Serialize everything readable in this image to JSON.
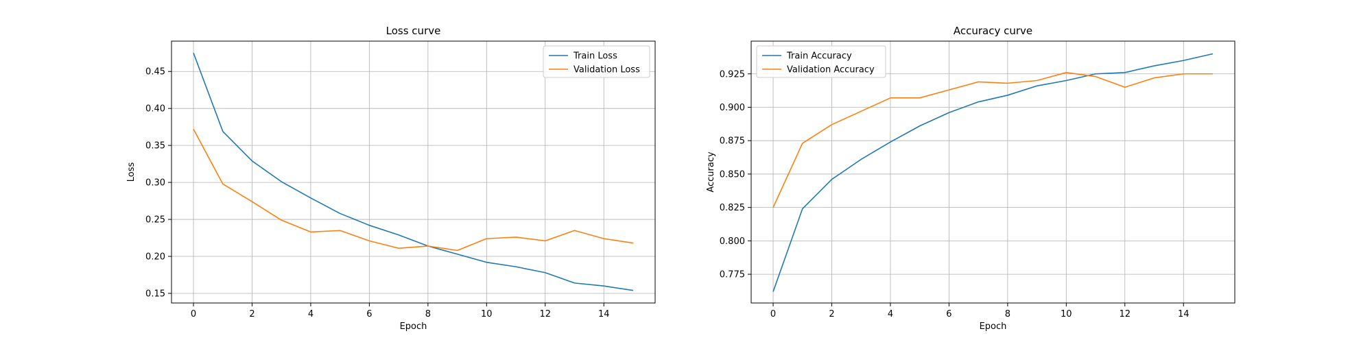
{
  "chart_data": [
    {
      "type": "line",
      "title": "Loss curve",
      "xlabel": "Epoch",
      "ylabel": "Loss",
      "xlim": [
        -0.75,
        15.75
      ],
      "ylim": [
        0.137,
        0.491
      ],
      "xticks": [
        0,
        2,
        4,
        6,
        8,
        10,
        12,
        14
      ],
      "yticks": [
        0.15,
        0.2,
        0.25,
        0.3,
        0.35,
        0.4,
        0.45
      ],
      "ytick_labels": [
        "0.15",
        "0.20",
        "0.25",
        "0.30",
        "0.35",
        "0.40",
        "0.45"
      ],
      "grid": true,
      "legend_position": "top-right",
      "x": [
        0,
        1,
        2,
        3,
        4,
        5,
        6,
        7,
        8,
        9,
        10,
        11,
        12,
        13,
        14,
        15
      ],
      "series": [
        {
          "name": "Train Loss",
          "color": "#1f77b4",
          "values": [
            0.475,
            0.369,
            0.329,
            0.301,
            0.279,
            0.258,
            0.242,
            0.229,
            0.214,
            0.203,
            0.192,
            0.186,
            0.178,
            0.164,
            0.16,
            0.154
          ]
        },
        {
          "name": "Validation Loss",
          "color": "#ff7f0e",
          "values": [
            0.372,
            0.298,
            0.274,
            0.249,
            0.233,
            0.235,
            0.221,
            0.211,
            0.214,
            0.208,
            0.224,
            0.226,
            0.221,
            0.235,
            0.224,
            0.218
          ]
        }
      ]
    },
    {
      "type": "line",
      "title": "Accuracy curve",
      "xlabel": "Epoch",
      "ylabel": "Accuracy",
      "xlim": [
        -0.75,
        15.75
      ],
      "ylim": [
        0.7535,
        0.9495
      ],
      "xticks": [
        0,
        2,
        4,
        6,
        8,
        10,
        12,
        14
      ],
      "yticks": [
        0.775,
        0.8,
        0.825,
        0.85,
        0.875,
        0.9,
        0.925
      ],
      "ytick_labels": [
        "0.775",
        "0.800",
        "0.825",
        "0.850",
        "0.875",
        "0.900",
        "0.925"
      ],
      "grid": true,
      "legend_position": "top-left",
      "x": [
        0,
        1,
        2,
        3,
        4,
        5,
        6,
        7,
        8,
        9,
        10,
        11,
        12,
        13,
        14,
        15
      ],
      "series": [
        {
          "name": "Train Accuracy",
          "color": "#1f77b4",
          "values": [
            0.762,
            0.824,
            0.846,
            0.861,
            0.874,
            0.886,
            0.896,
            0.904,
            0.909,
            0.916,
            0.92,
            0.925,
            0.926,
            0.931,
            0.935,
            0.94
          ]
        },
        {
          "name": "Validation Accuracy",
          "color": "#ff7f0e",
          "values": [
            0.825,
            0.873,
            0.887,
            0.897,
            0.907,
            0.907,
            0.913,
            0.919,
            0.918,
            0.92,
            0.926,
            0.923,
            0.915,
            0.922,
            0.925,
            0.925
          ]
        }
      ]
    }
  ]
}
